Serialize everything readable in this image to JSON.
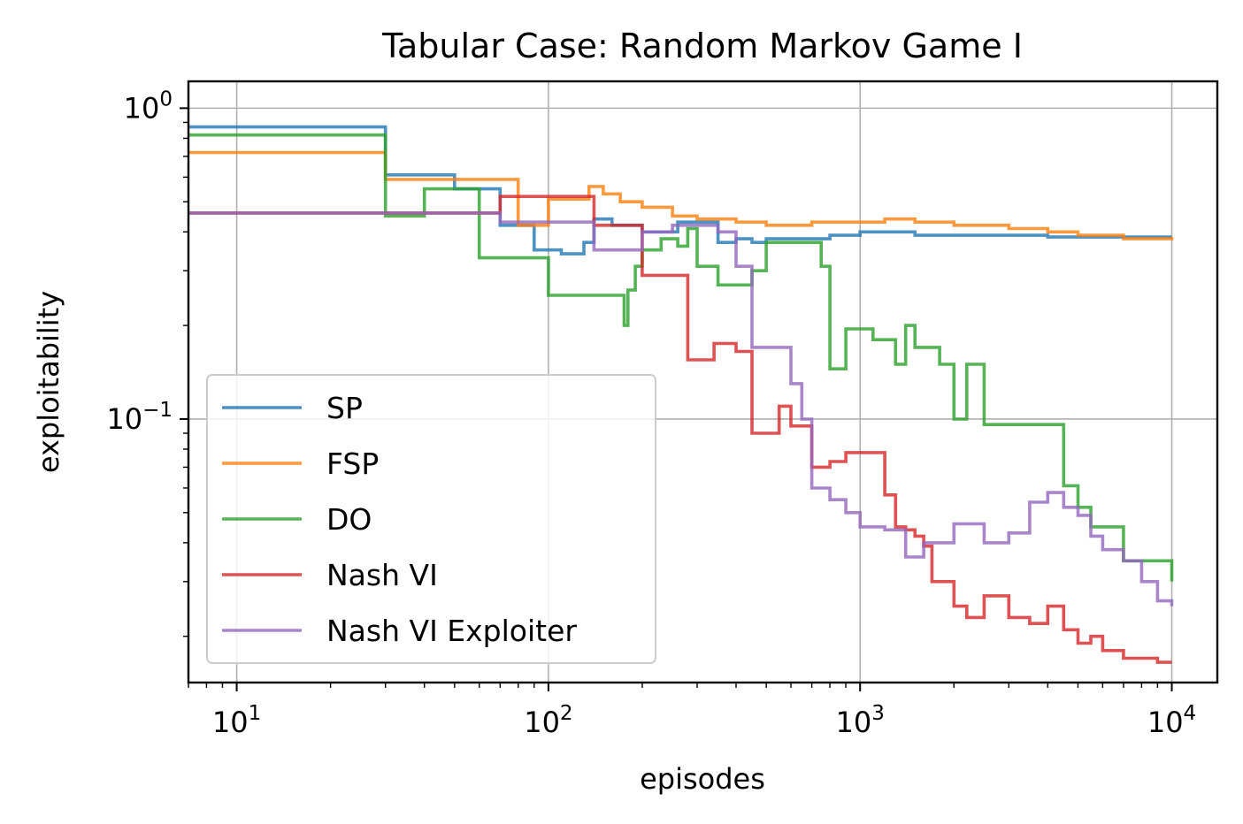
{
  "chart_data": {
    "type": "line",
    "title": "Tabular Case: Random Markov Game I",
    "xlabel": "episodes",
    "ylabel": "exploitability",
    "xscale": "log",
    "yscale": "log",
    "xlim": [
      7,
      14000
    ],
    "ylim": [
      0.0142,
      1.22
    ],
    "grid": true,
    "legend_position": "lower-left",
    "x_ticks": [
      {
        "value": 10,
        "base": "10",
        "exp": "1"
      },
      {
        "value": 100,
        "base": "10",
        "exp": "2"
      },
      {
        "value": 1000,
        "base": "10",
        "exp": "3"
      },
      {
        "value": 10000,
        "base": "10",
        "exp": "4"
      }
    ],
    "y_ticks": [
      {
        "value": 1,
        "base": "10",
        "exp": "0"
      },
      {
        "value": 0.1,
        "base": "10",
        "exp": "−1"
      }
    ],
    "series": [
      {
        "name": "SP",
        "color": "#1f77b4",
        "x": [
          7,
          20,
          30,
          40,
          50,
          60,
          70,
          90,
          110,
          120,
          130,
          140,
          160,
          180,
          200,
          230,
          260,
          300,
          350,
          400,
          450,
          500,
          600,
          700,
          800,
          1000,
          1500,
          2000,
          3000,
          4000,
          5000,
          7000,
          10000
        ],
        "y": [
          0.87,
          0.87,
          0.61,
          0.61,
          0.55,
          0.55,
          0.42,
          0.35,
          0.34,
          0.34,
          0.37,
          0.44,
          0.42,
          0.42,
          0.4,
          0.4,
          0.43,
          0.43,
          0.37,
          0.38,
          0.37,
          0.38,
          0.38,
          0.38,
          0.39,
          0.4,
          0.39,
          0.39,
          0.39,
          0.385,
          0.385,
          0.385,
          0.385
        ]
      },
      {
        "name": "FSP",
        "color": "#ff7f0e",
        "x": [
          7,
          20,
          30,
          40,
          50,
          65,
          80,
          100,
          120,
          135,
          150,
          170,
          200,
          250,
          300,
          400,
          500,
          600,
          700,
          800,
          1000,
          1200,
          1500,
          2000,
          3000,
          4000,
          5000,
          7000,
          10000
        ],
        "y": [
          0.72,
          0.72,
          0.59,
          0.59,
          0.59,
          0.59,
          0.42,
          0.51,
          0.51,
          0.56,
          0.53,
          0.5,
          0.48,
          0.45,
          0.44,
          0.43,
          0.42,
          0.42,
          0.43,
          0.43,
          0.43,
          0.44,
          0.43,
          0.42,
          0.41,
          0.4,
          0.39,
          0.38,
          0.385
        ]
      },
      {
        "name": "DO",
        "color": "#2ca02c",
        "x": [
          7,
          20,
          30,
          40,
          50,
          60,
          80,
          100,
          150,
          175,
          180,
          190,
          200,
          230,
          260,
          280,
          300,
          350,
          400,
          450,
          500,
          700,
          750,
          800,
          900,
          1100,
          1300,
          1400,
          1500,
          1600,
          1800,
          2000,
          2200,
          2500,
          3000,
          3500,
          4500,
          5000,
          5500,
          7000,
          10000
        ],
        "y": [
          0.82,
          0.82,
          0.45,
          0.55,
          0.55,
          0.33,
          0.33,
          0.25,
          0.25,
          0.2,
          0.26,
          0.31,
          0.35,
          0.38,
          0.36,
          0.41,
          0.31,
          0.27,
          0.27,
          0.3,
          0.37,
          0.37,
          0.31,
          0.145,
          0.195,
          0.18,
          0.15,
          0.2,
          0.17,
          0.17,
          0.15,
          0.1,
          0.15,
          0.096,
          0.096,
          0.096,
          0.061,
          0.052,
          0.045,
          0.035,
          0.03
        ]
      },
      {
        "name": "Nash VI",
        "color": "#d62728",
        "x": [
          7,
          60,
          70,
          100,
          120,
          130,
          140,
          160,
          200,
          220,
          260,
          280,
          300,
          340,
          380,
          400,
          450,
          500,
          550,
          600,
          650,
          700,
          800,
          900,
          1000,
          1200,
          1300,
          1400,
          1500,
          1600,
          1700,
          2000,
          2200,
          2500,
          3000,
          3500,
          4000,
          4500,
          5000,
          5500,
          6000,
          7000,
          8000,
          9000,
          10000
        ],
        "y": [
          0.46,
          0.46,
          0.52,
          0.52,
          0.52,
          0.52,
          0.42,
          0.42,
          0.29,
          0.29,
          0.29,
          0.155,
          0.155,
          0.175,
          0.175,
          0.165,
          0.09,
          0.09,
          0.11,
          0.095,
          0.095,
          0.07,
          0.073,
          0.078,
          0.078,
          0.057,
          0.045,
          0.044,
          0.042,
          0.039,
          0.03,
          0.025,
          0.023,
          0.027,
          0.023,
          0.022,
          0.025,
          0.021,
          0.019,
          0.02,
          0.018,
          0.017,
          0.017,
          0.0165,
          0.0165
        ]
      },
      {
        "name": "Nash VI Exploiter",
        "color": "#9467bd",
        "x": [
          7,
          60,
          70,
          100,
          120,
          140,
          180,
          200,
          250,
          300,
          350,
          400,
          450,
          500,
          550,
          600,
          650,
          700,
          800,
          900,
          1000,
          1200,
          1400,
          1600,
          2000,
          2500,
          3000,
          3500,
          4000,
          4500,
          5000,
          5500,
          6000,
          7000,
          8000,
          9000,
          10000
        ],
        "y": [
          0.46,
          0.46,
          0.43,
          0.43,
          0.43,
          0.35,
          0.35,
          0.4,
          0.42,
          0.42,
          0.4,
          0.31,
          0.17,
          0.17,
          0.17,
          0.13,
          0.1,
          0.06,
          0.055,
          0.05,
          0.045,
          0.044,
          0.036,
          0.04,
          0.046,
          0.04,
          0.043,
          0.054,
          0.058,
          0.052,
          0.049,
          0.042,
          0.038,
          0.035,
          0.03,
          0.026,
          0.025
        ]
      }
    ]
  }
}
